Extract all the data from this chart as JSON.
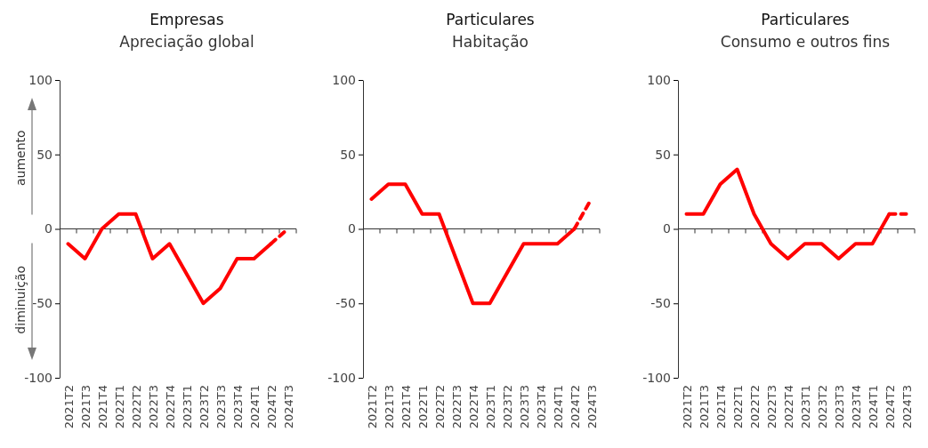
{
  "chart_data": [
    {
      "type": "line",
      "title": "Empresas",
      "subtitle": "Apreciação global",
      "annotations": [
        "aumento",
        "diminuição"
      ],
      "categories": [
        "2021T2",
        "2021T3",
        "2021T4",
        "2022T1",
        "2022T2",
        "2022T3",
        "2022T4",
        "2023T1",
        "2023T2",
        "2023T3",
        "2023T4",
        "2024T1",
        "2024T2",
        "2024T3"
      ],
      "ylim": [
        -100,
        100
      ],
      "yticks": [
        -100,
        -50,
        0,
        50,
        100
      ],
      "series": [
        {
          "color": "#ff0000",
          "line_style": "solid",
          "values": [
            -10,
            -20,
            0,
            10,
            10,
            -20,
            -10,
            -30,
            -50,
            -40,
            -20,
            -20,
            -10,
            null
          ]
        },
        {
          "color": "#ff0000",
          "line_style": "dashed",
          "values": [
            null,
            null,
            null,
            null,
            null,
            null,
            null,
            null,
            null,
            null,
            null,
            null,
            -10,
            0
          ]
        }
      ]
    },
    {
      "type": "line",
      "title": "Particulares",
      "subtitle": "Habitação",
      "categories": [
        "2021T2",
        "2021T3",
        "2021T4",
        "2022T1",
        "2022T2",
        "2022T3",
        "2022T4",
        "2023T1",
        "2023T2",
        "2023T3",
        "2023T4",
        "2024T1",
        "2024T2",
        "2024T3"
      ],
      "ylim": [
        -100,
        100
      ],
      "yticks": [
        -100,
        -50,
        0,
        50,
        100
      ],
      "series": [
        {
          "color": "#ff0000",
          "line_style": "solid",
          "values": [
            20,
            30,
            30,
            10,
            10,
            -20,
            -50,
            -50,
            -30,
            -10,
            -10,
            -10,
            0,
            null
          ]
        },
        {
          "color": "#ff0000",
          "line_style": "dashed",
          "values": [
            null,
            null,
            null,
            null,
            null,
            null,
            null,
            null,
            null,
            null,
            null,
            null,
            0,
            20
          ]
        }
      ]
    },
    {
      "type": "line",
      "title": "Particulares",
      "subtitle": "Consumo e outros fins",
      "categories": [
        "2021T2",
        "2021T3",
        "2021T4",
        "2022T1",
        "2022T2",
        "2022T3",
        "2022T4",
        "2023T1",
        "2023T2",
        "2023T3",
        "2023T4",
        "2024T1",
        "2024T2",
        "2024T3"
      ],
      "ylim": [
        -100,
        100
      ],
      "yticks": [
        -100,
        -50,
        0,
        50,
        100
      ],
      "series": [
        {
          "color": "#ff0000",
          "line_style": "solid",
          "values": [
            10,
            10,
            30,
            40,
            10,
            -10,
            -20,
            -10,
            -10,
            -20,
            -10,
            -10,
            10,
            null
          ]
        },
        {
          "color": "#ff0000",
          "line_style": "dashed",
          "values": [
            null,
            null,
            null,
            null,
            null,
            null,
            null,
            null,
            null,
            null,
            null,
            null,
            10,
            10
          ]
        }
      ]
    }
  ]
}
